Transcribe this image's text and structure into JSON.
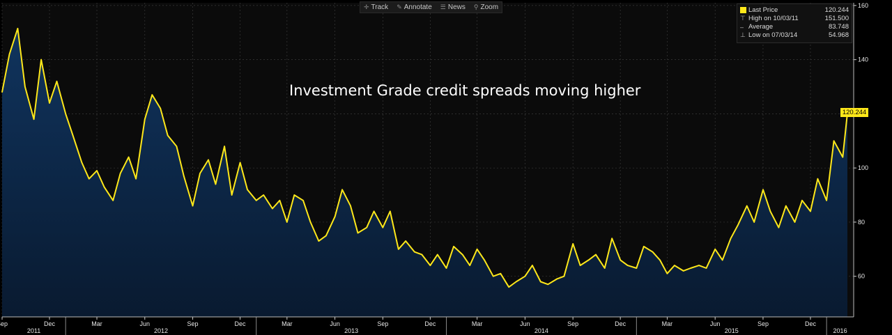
{
  "toolbar": {
    "items": [
      {
        "icon": "crosshair-icon",
        "label": "Track"
      },
      {
        "icon": "pencil-icon",
        "label": "Annotate"
      },
      {
        "icon": "news-icon",
        "label": "News"
      },
      {
        "icon": "magnifier-icon",
        "label": "Zoom"
      }
    ]
  },
  "legend": {
    "last": {
      "label": "Last Price",
      "value": "120.244"
    },
    "high": {
      "label": "High on 10/03/11",
      "value": "151.500"
    },
    "avg": {
      "label": "Average",
      "value": "83.748"
    },
    "low": {
      "label": "Low on 07/03/14",
      "value": "54.968"
    }
  },
  "last_value_label": "120.244",
  "annotation": "Investment Grade credit spreads moving higher",
  "colors": {
    "background": "#0b0b0b",
    "line": "#ffe81a",
    "area_top": "#10345e",
    "area_bottom": "#091a30",
    "grid": "#3a3a3a"
  },
  "chart_data": {
    "type": "area",
    "title": "",
    "xlabel": "",
    "ylabel": "",
    "ylim": [
      45,
      161
    ],
    "y_ticks": [
      60,
      80,
      100,
      120,
      140,
      160
    ],
    "x_ticks": [
      "Sep",
      "Dec",
      "Mar",
      "Jun",
      "Sep",
      "Dec",
      "Mar",
      "Jun",
      "Sep",
      "Dec",
      "Mar",
      "Jun",
      "Sep",
      "Dec",
      "Mar",
      "Jun",
      "Sep",
      "Dec"
    ],
    "year_labels": [
      "2011",
      "2012",
      "2013",
      "2014",
      "2015",
      "2016"
    ],
    "grid": true,
    "legend_position": "top-right",
    "series": [
      {
        "name": "Last Price",
        "x": [
          "2011-09-01",
          "2011-09-15",
          "2011-10-01",
          "2011-10-15",
          "2011-11-01",
          "2011-11-15",
          "2011-12-01",
          "2011-12-15",
          "2012-01-01",
          "2012-01-15",
          "2012-02-01",
          "2012-02-15",
          "2012-03-01",
          "2012-03-15",
          "2012-04-01",
          "2012-04-15",
          "2012-05-01",
          "2012-05-15",
          "2012-06-01",
          "2012-06-15",
          "2012-07-01",
          "2012-07-15",
          "2012-08-01",
          "2012-08-15",
          "2012-09-01",
          "2012-09-15",
          "2012-10-01",
          "2012-10-15",
          "2012-11-01",
          "2012-11-15",
          "2012-12-01",
          "2012-12-15",
          "2013-01-01",
          "2013-01-15",
          "2013-02-01",
          "2013-02-15",
          "2013-03-01",
          "2013-03-15",
          "2013-04-01",
          "2013-04-15",
          "2013-05-01",
          "2013-05-15",
          "2013-06-01",
          "2013-06-15",
          "2013-07-01",
          "2013-07-15",
          "2013-08-01",
          "2013-08-15",
          "2013-09-01",
          "2013-09-15",
          "2013-10-01",
          "2013-10-15",
          "2013-11-01",
          "2013-11-15",
          "2013-12-01",
          "2013-12-15",
          "2014-01-01",
          "2014-01-15",
          "2014-02-01",
          "2014-02-15",
          "2014-03-01",
          "2014-03-15",
          "2014-04-01",
          "2014-04-15",
          "2014-05-01",
          "2014-05-15",
          "2014-06-01",
          "2014-06-15",
          "2014-07-01",
          "2014-07-15",
          "2014-08-01",
          "2014-08-15",
          "2014-09-01",
          "2014-09-15",
          "2014-10-01",
          "2014-10-15",
          "2014-11-01",
          "2014-11-15",
          "2014-12-01",
          "2014-12-15",
          "2015-01-01",
          "2015-01-15",
          "2015-02-01",
          "2015-02-15",
          "2015-03-01",
          "2015-03-15",
          "2015-04-01",
          "2015-04-15",
          "2015-05-01",
          "2015-05-15",
          "2015-06-01",
          "2015-06-15",
          "2015-07-01",
          "2015-07-15",
          "2015-08-01",
          "2015-08-15",
          "2015-09-01",
          "2015-09-15",
          "2015-10-01",
          "2015-10-15",
          "2015-11-01",
          "2015-11-15",
          "2015-12-01",
          "2015-12-15",
          "2016-01-01",
          "2016-01-15",
          "2016-02-01",
          "2016-02-10"
        ],
        "values": [
          128,
          142,
          151.5,
          130,
          118,
          140,
          124,
          132,
          120,
          112,
          102,
          96,
          99,
          93,
          88,
          98,
          104,
          96,
          118,
          127,
          122,
          112,
          108,
          97,
          86,
          98,
          103,
          94,
          108,
          90,
          102,
          92,
          88,
          90,
          85,
          88,
          80,
          90,
          88,
          80,
          73,
          75,
          82,
          92,
          86,
          76,
          78,
          84,
          78,
          84,
          70,
          73,
          69,
          68,
          64,
          68,
          63,
          71,
          68,
          64,
          70,
          66,
          60,
          61,
          56,
          58,
          60,
          64,
          58,
          57,
          59,
          60,
          72,
          64,
          66,
          68,
          63,
          74,
          66,
          64,
          63,
          71,
          69,
          66,
          61,
          64,
          62,
          63,
          64,
          63,
          70,
          66,
          74,
          79,
          86,
          80,
          92,
          84,
          78,
          86,
          80,
          88,
          84,
          96,
          88,
          110,
          104,
          120.244
        ]
      }
    ]
  }
}
